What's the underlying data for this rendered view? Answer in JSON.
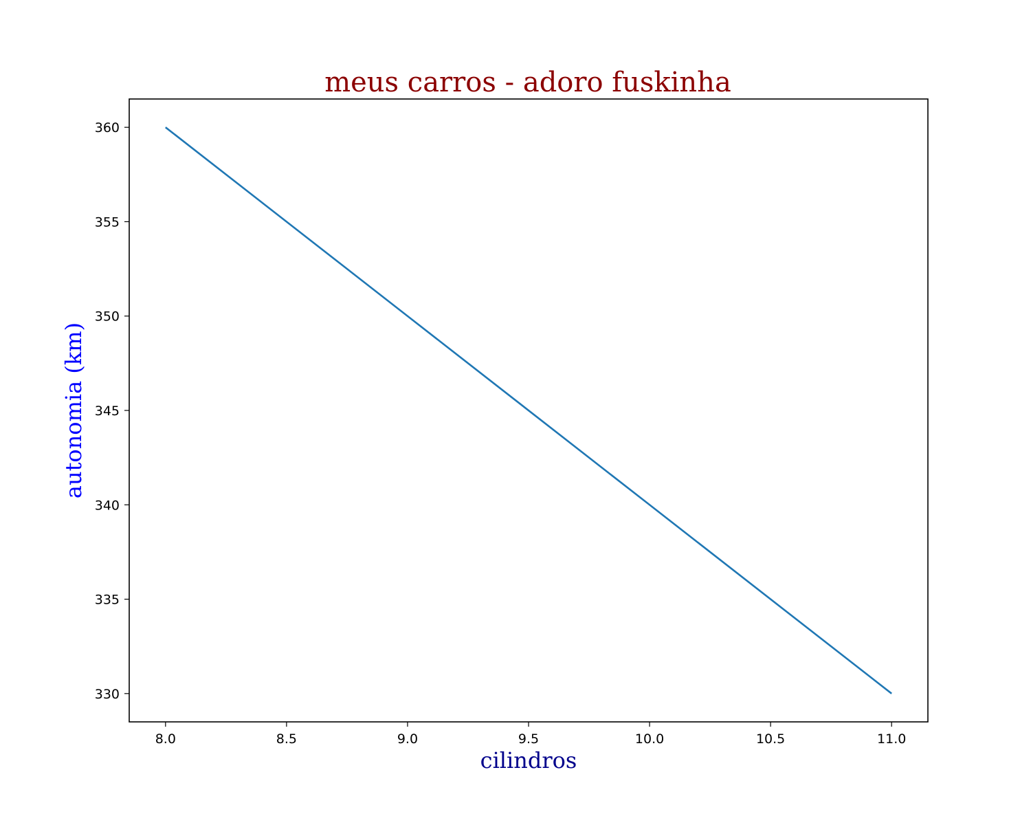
{
  "chart_data": {
    "type": "line",
    "title": "meus carros - adoro fuskinha",
    "xlabel": "cilindros",
    "ylabel": "autonomia (km)",
    "xlim": [
      7.85,
      11.15
    ],
    "ylim": [
      328.5,
      361.5
    ],
    "x_ticks": [
      8.0,
      8.5,
      9.0,
      9.5,
      10.0,
      10.5,
      11.0
    ],
    "x_tick_labels": [
      "8.0",
      "8.5",
      "9.0",
      "9.5",
      "10.0",
      "10.5",
      "11.0"
    ],
    "y_ticks": [
      330,
      335,
      340,
      345,
      350,
      355,
      360
    ],
    "y_tick_labels": [
      "330",
      "335",
      "340",
      "345",
      "350",
      "355",
      "360"
    ],
    "grid": false,
    "series": [
      {
        "x": [
          8,
          9,
          10,
          11
        ],
        "y": [
          360,
          350,
          340,
          330
        ]
      }
    ],
    "colors": {
      "title": "#8b0000",
      "xlabel": "#00008b",
      "ylabel": "#0000ff",
      "line": "#1f77b4"
    }
  }
}
